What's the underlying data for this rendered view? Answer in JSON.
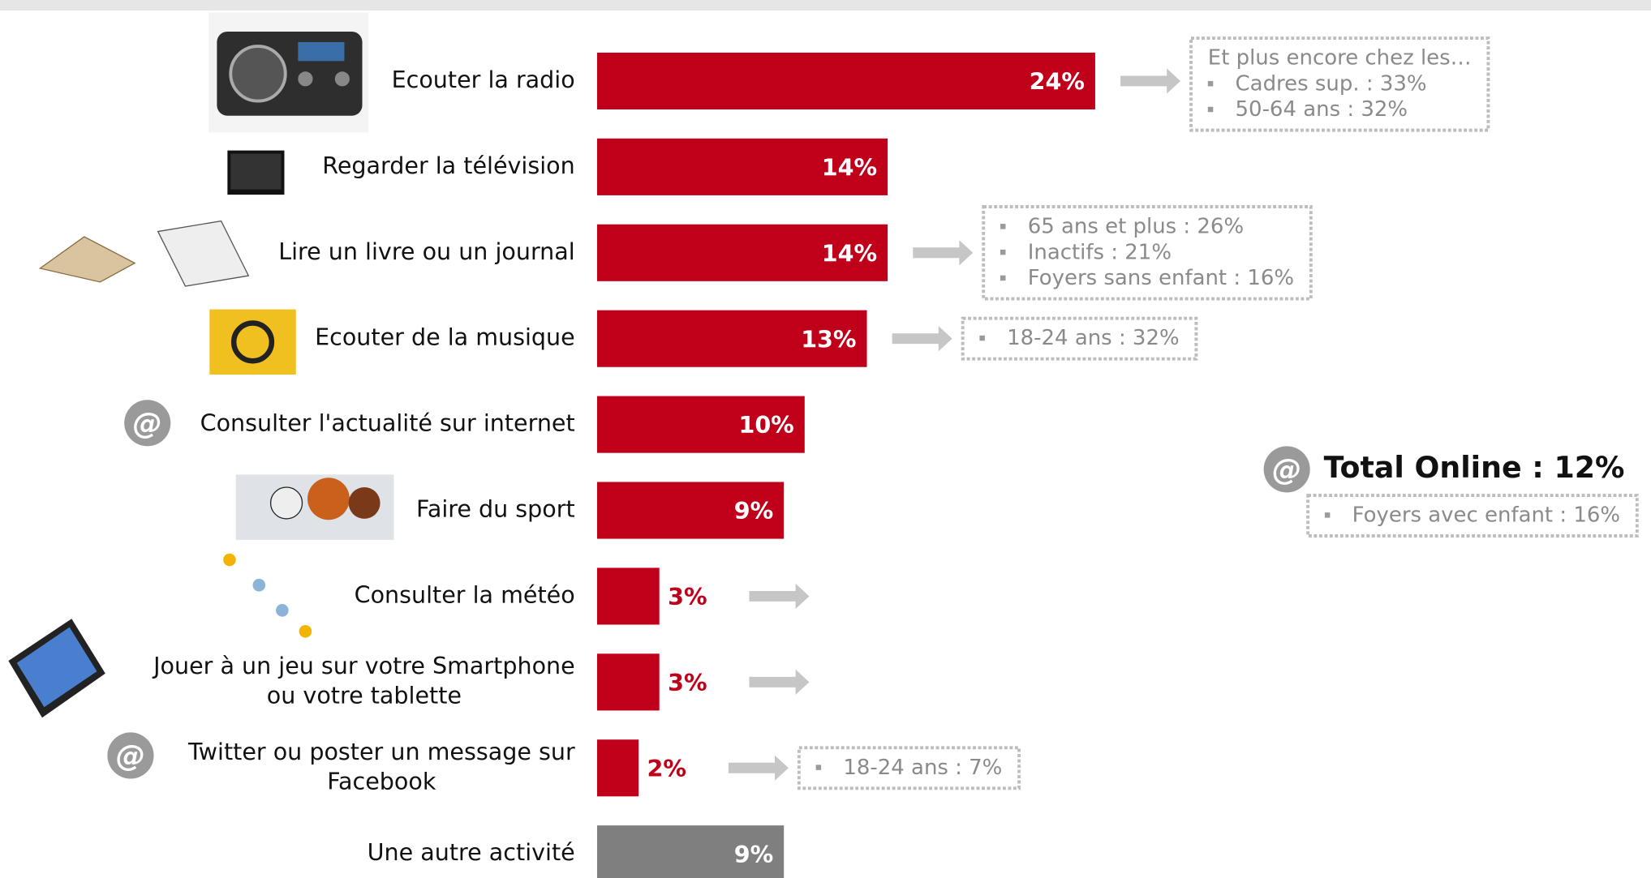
{
  "chart_data": {
    "type": "bar",
    "categories": [
      "Ecouter la radio",
      "Regarder la télévision",
      "Lire un livre ou un journal",
      "Ecouter de la musique",
      "Consulter l'actualité sur internet",
      "Faire du sport",
      "Consulter la météo",
      "Jouer à un jeu sur votre Smartphone\nou votre tablette",
      "Twitter ou poster un message sur\nFacebook",
      "Une autre activité"
    ],
    "values": [
      24,
      14,
      14,
      13,
      10,
      9,
      3,
      3,
      2,
      9
    ],
    "value_labels": [
      "24%",
      "14%",
      "14%",
      "13%",
      "10%",
      "9%",
      "3%",
      "3%",
      "2%",
      "9%"
    ],
    "colors": [
      "#c0001a",
      "#c0001a",
      "#c0001a",
      "#c0001a",
      "#c0001a",
      "#c0001a",
      "#c0001a",
      "#c0001a",
      "#c0001a",
      "#7f7f7f"
    ],
    "callouts": [
      {
        "heading": "Et plus encore chez les…",
        "items": [
          "Cadres sup. : 33%",
          "50-64 ans : 32%"
        ]
      },
      null,
      {
        "items": [
          "65 ans et plus : 26%",
          "Inactifs : 21%",
          "Foyers sans enfant : 16%"
        ]
      },
      {
        "items": [
          "18-24 ans : 32%"
        ]
      },
      null,
      null,
      null,
      null,
      {
        "items": [
          "18-24 ans : 7%"
        ]
      },
      null
    ],
    "total": {
      "label": "Total Online : 12%",
      "items": [
        "Foyers avec enfant : 16%"
      ]
    }
  }
}
